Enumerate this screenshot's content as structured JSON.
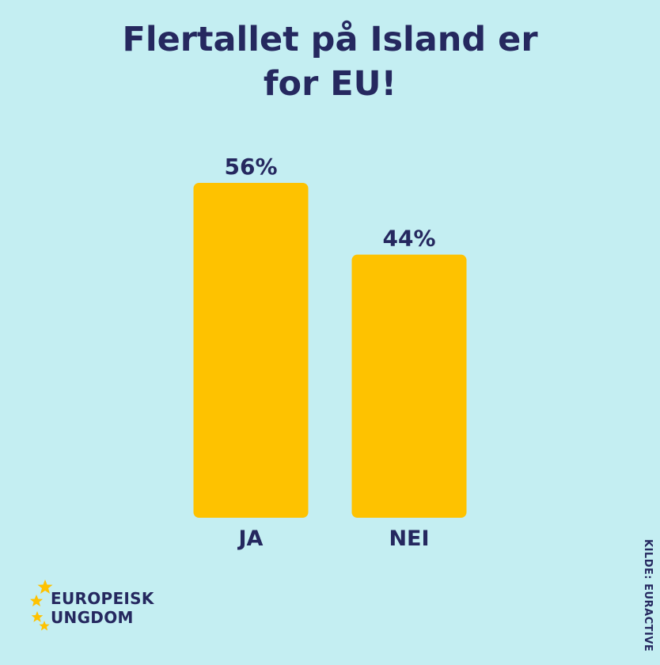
{
  "title_line1": "Flertallet på Island er",
  "title_line2": "for EU!",
  "chart_data": {
    "type": "bar",
    "title": "Flertallet på Island er for EU!",
    "categories": [
      "JA",
      "NEI"
    ],
    "values": [
      56,
      44
    ],
    "value_labels": [
      "56%",
      "44%"
    ],
    "unit": "%",
    "ylim": [
      0,
      56
    ],
    "grid": false,
    "legend": "none",
    "bar_color": "#fec200"
  },
  "logo": {
    "line1": "EUROPEISK",
    "line2": "UNGDOM",
    "star_color": "#fec200"
  },
  "source": "KILDE: EURACTIVE",
  "colors": {
    "background": "#c4eef2",
    "text": "#25285f",
    "bar": "#fec200"
  }
}
